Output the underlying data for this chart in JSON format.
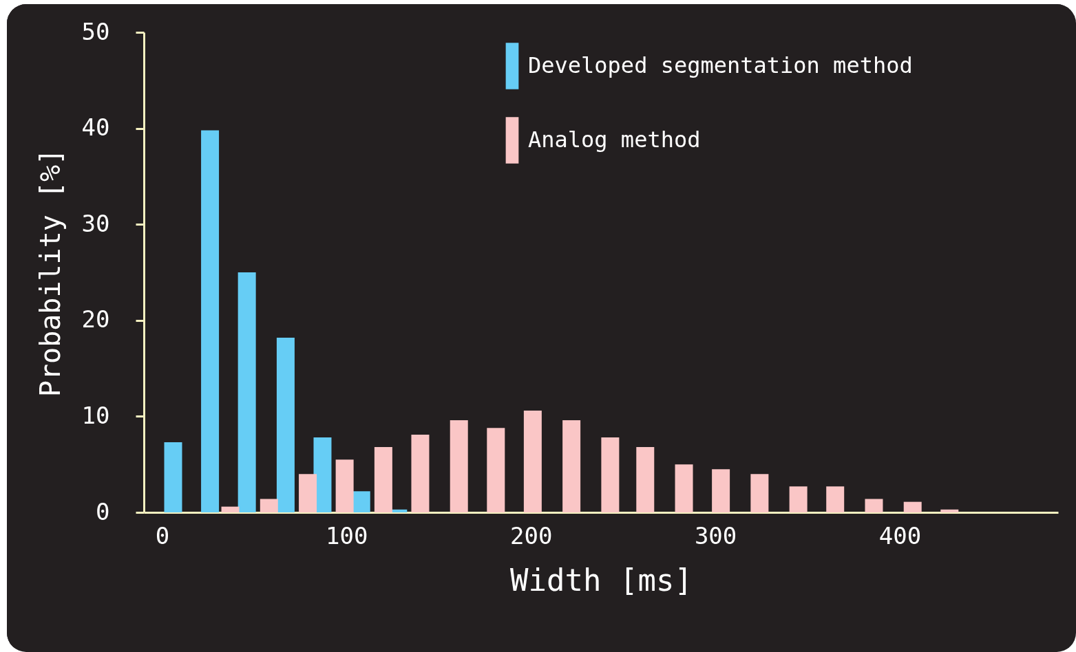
{
  "chart_data": {
    "type": "bar",
    "xlabel": "Width [ms]",
    "ylabel": "Probability [%]",
    "xlim": [
      -8,
      484
    ],
    "xticks": [
      0,
      100,
      200,
      300,
      400
    ],
    "ylim": [
      0,
      50
    ],
    "yticks": [
      0,
      10,
      20,
      30,
      40,
      50
    ],
    "grid": false,
    "legend": "top right",
    "series": [
      {
        "name": "Developed segmentation method",
        "color": "#66cdf5",
        "x": [
          6,
          26,
          46,
          67,
          87,
          108,
          128
        ],
        "values": [
          7.3,
          39.8,
          25,
          18.2,
          7.8,
          2.2,
          0.3
        ]
      },
      {
        "name": "Analog method",
        "color": "#fac6c6",
        "x": [
          37,
          58,
          79,
          99,
          120,
          140,
          161,
          181,
          201,
          222,
          243,
          262,
          283,
          303,
          324,
          345,
          365,
          386,
          407,
          427
        ],
        "values": [
          0.6,
          1.4,
          4.0,
          5.5,
          6.8,
          8.1,
          9.6,
          8.8,
          10.6,
          9.6,
          7.8,
          6.8,
          5.0,
          4.5,
          4.0,
          2.7,
          2.7,
          1.4,
          1.1,
          0.3
        ]
      }
    ]
  }
}
